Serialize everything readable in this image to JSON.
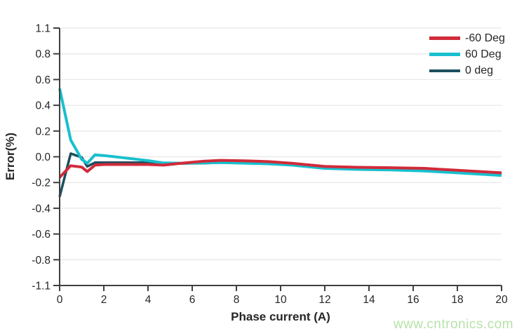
{
  "watermark": {
    "text": "www.cntronics.com"
  },
  "colors": {
    "background": "#ffffff",
    "axis": "#3f3f3f",
    "grid": "#e8e8e8",
    "tick_label": "#262626",
    "watermark": "#b6e2a8"
  },
  "chart_data": {
    "type": "line",
    "title": "",
    "xlabel": "Phase current (A)",
    "ylabel": "Error(%)",
    "xlim": [
      0,
      20
    ],
    "ylim": [
      -1.1,
      1.1
    ],
    "grid": "horizontal gridline at every y tick",
    "legend_position": "top-right inside plot area",
    "x_tick_labels": [
      "0",
      "2",
      "4",
      "6",
      "8",
      "10",
      "12",
      "14",
      "16",
      "18",
      "20"
    ],
    "y_tick_labels": [
      "1.1",
      "0.8",
      "0.6",
      "0.4",
      "0.2",
      "0.0",
      "-0.2",
      "-0.4",
      "-0.6",
      "-0.8",
      "-1.1"
    ],
    "x": [
      0,
      0.5,
      1,
      1.25,
      1.6,
      2,
      3,
      4,
      4.7,
      5.5,
      6.5,
      7.3,
      8.5,
      9.5,
      10.5,
      12,
      13.5,
      15,
      16.5,
      18,
      20
    ],
    "series": [
      {
        "name": "-60 Deg",
        "color": "#d12b3a",
        "stroke_width": 4,
        "values": [
          -0.16,
          -0.07,
          -0.08,
          -0.115,
          -0.065,
          -0.06,
          -0.06,
          -0.06,
          -0.065,
          -0.05,
          -0.035,
          -0.028,
          -0.032,
          -0.038,
          -0.05,
          -0.075,
          -0.082,
          -0.085,
          -0.09,
          -0.105,
          -0.125
        ]
      },
      {
        "name": "60 Deg",
        "color": "#18c0ce",
        "stroke_width": 4,
        "values": [
          0.53,
          0.13,
          -0.02,
          -0.05,
          0.015,
          0.01,
          -0.01,
          -0.03,
          -0.048,
          -0.05,
          -0.048,
          -0.045,
          -0.05,
          -0.055,
          -0.065,
          -0.09,
          -0.098,
          -0.102,
          -0.11,
          -0.125,
          -0.145
        ]
      },
      {
        "name": "0 deg",
        "color": "#1d4f5e",
        "stroke_width": 3.5,
        "values": [
          -0.31,
          0.025,
          -0.005,
          -0.075,
          -0.045,
          -0.045,
          -0.045,
          -0.045,
          -0.05,
          -0.052,
          -0.05,
          -0.045,
          -0.048,
          -0.052,
          -0.062,
          -0.088,
          -0.096,
          -0.1,
          -0.108,
          -0.122,
          -0.14
        ]
      }
    ]
  }
}
